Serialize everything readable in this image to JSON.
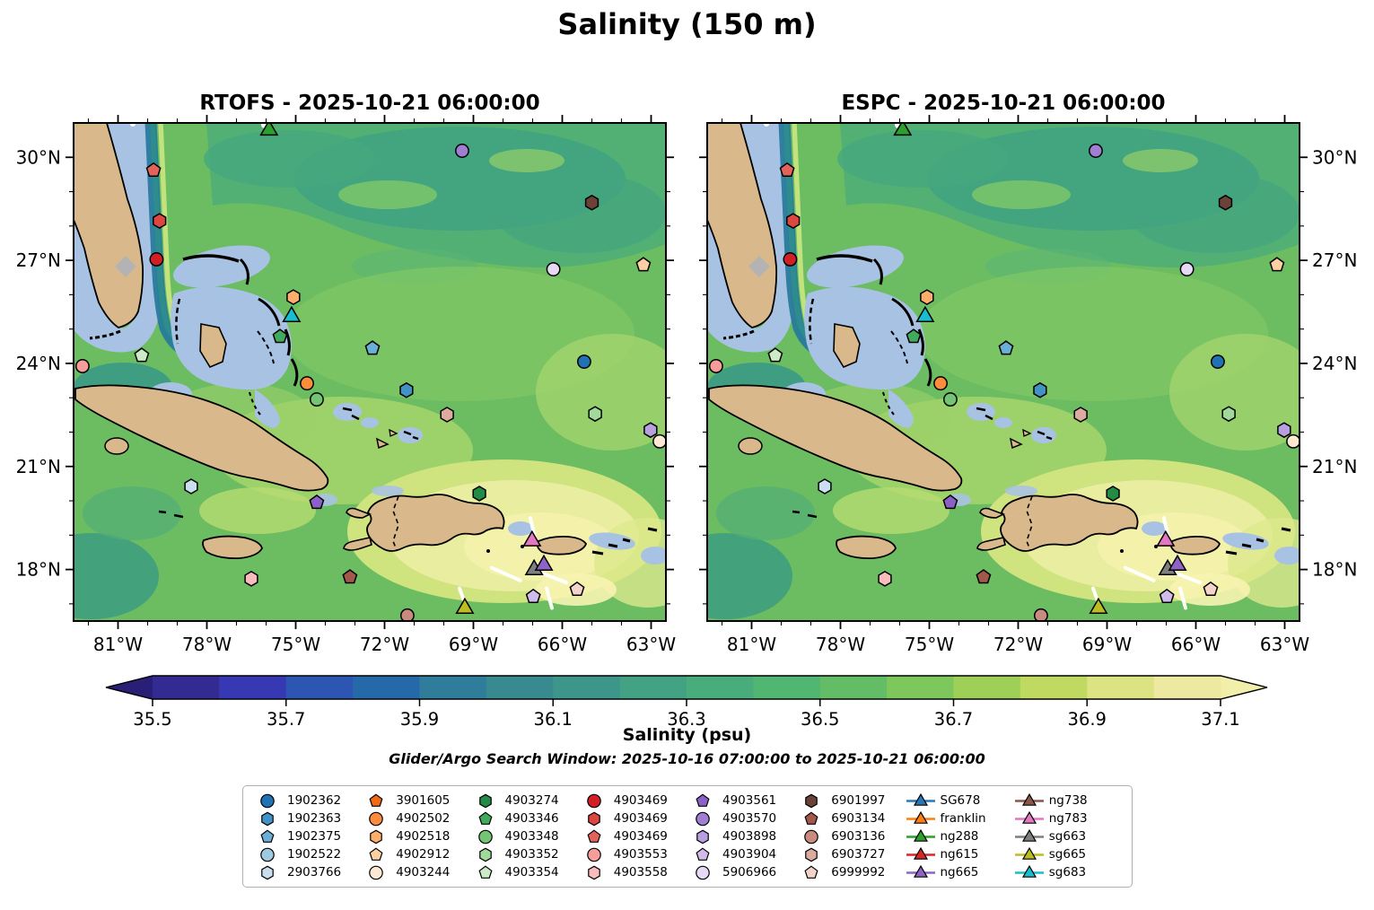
{
  "title": "Salinity (150 m)",
  "chart_data": {
    "type": "scatter",
    "title": "Salinity (150 m)",
    "subplots": [
      {
        "model": "RTOFS",
        "title": "RTOFS - 2025-10-21 06:00:00"
      },
      {
        "model": "ESPC",
        "title": "ESPC - 2025-10-21 06:00:00"
      }
    ],
    "lon_range": [
      -82.5,
      -62.5
    ],
    "lat_range": [
      16.5,
      31.0
    ],
    "x_ticks": {
      "labels": [
        "81°W",
        "78°W",
        "75°W",
        "72°W",
        "69°W",
        "66°W",
        "63°W"
      ],
      "lons": [
        -81,
        -78,
        -75,
        -72,
        -69,
        -66,
        -63
      ],
      "minor_step_deg": 1
    },
    "y_ticks": {
      "labels": [
        "30°N",
        "27°N",
        "24°N",
        "21°N",
        "18°N"
      ],
      "lats": [
        30,
        27,
        24,
        21,
        18
      ],
      "minor_step_deg": 1
    },
    "colorbar": {
      "label": "Salinity (psu)",
      "tick_labels": [
        "35.5",
        "35.7",
        "35.9",
        "36.1",
        "36.3",
        "36.5",
        "36.7",
        "36.9",
        "37.1"
      ],
      "tick_values": [
        35.5,
        35.7,
        35.9,
        36.1,
        36.3,
        36.5,
        36.7,
        36.9,
        37.1
      ],
      "vmin": 35.5,
      "vmax": 37.1,
      "segment_step": 0.1,
      "extend": "both",
      "under_color": "#2a1f77",
      "over_color": "#f2efaa",
      "segment_colors": [
        "#342b92",
        "#3739b4",
        "#2d55b2",
        "#2569a9",
        "#2f7d9b",
        "#388a90",
        "#3d9689",
        "#42a283",
        "#48ad7a",
        "#51b671",
        "#63bd66",
        "#7ec75d",
        "#9ed058",
        "#c0d960",
        "#dce383",
        "#eee9a0"
      ]
    },
    "annotation": "Glider/Argo Search Window: 2025-10-16 07:00:00 to 2025-10-21 06:00:00",
    "legend": {
      "entries": [
        {
          "label": "1902362",
          "kind": "argo",
          "shape": "circle",
          "color": "#2171b5"
        },
        {
          "label": "1902363",
          "kind": "argo",
          "shape": "hexagon",
          "color": "#4292c6"
        },
        {
          "label": "1902375",
          "kind": "argo",
          "shape": "pentagon",
          "color": "#6baed6"
        },
        {
          "label": "1902522",
          "kind": "argo",
          "shape": "circle",
          "color": "#9ecae1"
        },
        {
          "label": "2903766",
          "kind": "argo",
          "shape": "hexagon",
          "color": "#c9dff0"
        },
        {
          "label": "3901605",
          "kind": "argo",
          "shape": "pentagon",
          "color": "#f16913"
        },
        {
          "label": "4902502",
          "kind": "argo",
          "shape": "circle",
          "color": "#fd8d3c"
        },
        {
          "label": "4902518",
          "kind": "argo",
          "shape": "hexagon",
          "color": "#fdae6b"
        },
        {
          "label": "4902912",
          "kind": "argo",
          "shape": "pentagon",
          "color": "#fdd0a2"
        },
        {
          "label": "4903244",
          "kind": "argo",
          "shape": "circle",
          "color": "#fde8d4"
        },
        {
          "label": "4903274",
          "kind": "argo",
          "shape": "hexagon",
          "color": "#238b45"
        },
        {
          "label": "4903346",
          "kind": "argo",
          "shape": "pentagon",
          "color": "#41ab5d"
        },
        {
          "label": "4903348",
          "kind": "argo",
          "shape": "circle",
          "color": "#74c476"
        },
        {
          "label": "4903352",
          "kind": "argo",
          "shape": "hexagon",
          "color": "#a1d99b"
        },
        {
          "label": "4903354",
          "kind": "argo",
          "shape": "pentagon",
          "color": "#cdeac7"
        },
        {
          "label": "4903469",
          "kind": "argo",
          "shape": "circle",
          "color": "#d21f26"
        },
        {
          "label": "4903469",
          "kind": "argo",
          "shape": "hexagon",
          "color": "#dc4840"
        },
        {
          "label": "4903469",
          "kind": "argo",
          "shape": "pentagon",
          "color": "#e2635a"
        },
        {
          "label": "4903553",
          "kind": "argo",
          "shape": "circle",
          "color": "#f59d98"
        },
        {
          "label": "4903558",
          "kind": "argo",
          "shape": "hexagon",
          "color": "#f9bcbe"
        },
        {
          "label": "4903561",
          "kind": "argo",
          "shape": "pentagon",
          "color": "#8c61c7"
        },
        {
          "label": "4903570",
          "kind": "argo",
          "shape": "circle",
          "color": "#a07fd3"
        },
        {
          "label": "4903898",
          "kind": "argo",
          "shape": "hexagon",
          "color": "#b79fe0"
        },
        {
          "label": "4903904",
          "kind": "argo",
          "shape": "pentagon",
          "color": "#cfbcea"
        },
        {
          "label": "5906966",
          "kind": "argo",
          "shape": "circle",
          "color": "#e6d9f6"
        },
        {
          "label": "6901997",
          "kind": "argo",
          "shape": "hexagon",
          "color": "#6b4238"
        },
        {
          "label": "6903134",
          "kind": "argo",
          "shape": "pentagon",
          "color": "#a2594c"
        },
        {
          "label": "6903136",
          "kind": "argo",
          "shape": "circle",
          "color": "#c98b80"
        },
        {
          "label": "6903727",
          "kind": "argo",
          "shape": "hexagon",
          "color": "#dcab9f"
        },
        {
          "label": "6999992",
          "kind": "argo",
          "shape": "pentagon",
          "color": "#f3d3ca"
        },
        {
          "label": "SG678",
          "kind": "glider",
          "shape": "triangle",
          "color": "#2878b8"
        },
        {
          "label": "franklin",
          "kind": "glider",
          "shape": "triangle",
          "color": "#ff7f0e"
        },
        {
          "label": "ng288",
          "kind": "glider",
          "shape": "triangle",
          "color": "#2ca02c"
        },
        {
          "label": "ng615",
          "kind": "glider",
          "shape": "triangle",
          "color": "#d62728"
        },
        {
          "label": "ng665",
          "kind": "glider",
          "shape": "triangle",
          "color": "#8e63c5"
        },
        {
          "label": "ng738",
          "kind": "glider",
          "shape": "triangle",
          "color": "#8c564b"
        },
        {
          "label": "ng783",
          "kind": "glider",
          "shape": "triangle",
          "color": "#e377c2"
        },
        {
          "label": "sg663",
          "kind": "glider",
          "shape": "triangle",
          "color": "#7f7f7f"
        },
        {
          "label": "sg665",
          "kind": "glider",
          "shape": "triangle",
          "color": "#bcbd22"
        },
        {
          "label": "sg683",
          "kind": "glider",
          "shape": "triangle",
          "color": "#17becf"
        }
      ]
    },
    "markers": [
      {
        "id": "ng288",
        "shape": "triangle",
        "color": "#2ca02c",
        "lon": -75.9,
        "lat": 30.79
      },
      {
        "id": "4903570",
        "shape": "circle",
        "color": "#a07fd3",
        "lon": -69.38,
        "lat": 30.19
      },
      {
        "id": "6901997",
        "shape": "hexagon",
        "color": "#6b4238",
        "lon": -65.0,
        "lat": 28.68
      },
      {
        "id": "4903469",
        "shape": "pentagon",
        "color": "#e2635a",
        "lon": -79.8,
        "lat": 29.62
      },
      {
        "id": "4903469",
        "shape": "hexagon",
        "color": "#dc4840",
        "lon": -79.6,
        "lat": 28.15
      },
      {
        "id": "4903469",
        "shape": "circle",
        "color": "#d21f26",
        "lon": -79.7,
        "lat": 27.03
      },
      {
        "id": "5906966",
        "shape": "circle",
        "color": "#e6d9f6",
        "lon": -66.3,
        "lat": 26.74
      },
      {
        "id": "4902912",
        "shape": "pentagon",
        "color": "#fdd0a2",
        "lon": -63.26,
        "lat": 26.87
      },
      {
        "id": "4903553",
        "shape": "circle",
        "color": "#f59d98",
        "lon": -82.2,
        "lat": 23.92
      },
      {
        "id": "4903354",
        "shape": "pentagon",
        "color": "#cdeac7",
        "lon": -80.2,
        "lat": 24.23
      },
      {
        "id": "4902518",
        "shape": "hexagon",
        "color": "#fdae6b",
        "lon": -75.08,
        "lat": 25.93
      },
      {
        "id": "sg683",
        "shape": "triangle",
        "color": "#17becf",
        "lon": -75.14,
        "lat": 25.36
      },
      {
        "id": "4903346",
        "shape": "pentagon",
        "color": "#41ab5d",
        "lon": -75.53,
        "lat": 24.78
      },
      {
        "id": "1902375",
        "shape": "pentagon",
        "color": "#6baed6",
        "lon": -72.41,
        "lat": 24.44
      },
      {
        "id": "4902502",
        "shape": "circle",
        "color": "#fd8d3c",
        "lon": -74.62,
        "lat": 23.42
      },
      {
        "id": "4903348",
        "shape": "circle",
        "color": "#74c476",
        "lon": -74.29,
        "lat": 22.95
      },
      {
        "id": "1902363",
        "shape": "hexagon",
        "color": "#4292c6",
        "lon": -71.26,
        "lat": 23.22
      },
      {
        "id": "6903727",
        "shape": "hexagon",
        "color": "#dcab9f",
        "lon": -69.89,
        "lat": 22.51
      },
      {
        "id": "1902362",
        "shape": "circle",
        "color": "#2171b5",
        "lon": -65.26,
        "lat": 24.05
      },
      {
        "id": "4903352",
        "shape": "hexagon",
        "color": "#a1d99b",
        "lon": -64.89,
        "lat": 22.53
      },
      {
        "id": "4903898",
        "shape": "hexagon",
        "color": "#b79fe0",
        "lon": -63.02,
        "lat": 22.06
      },
      {
        "id": "4903244",
        "shape": "circle",
        "color": "#fde8d4",
        "lon": -62.71,
        "lat": 21.73
      },
      {
        "id": "2903766",
        "shape": "hexagon",
        "color": "#c9dff0",
        "lon": -78.53,
        "lat": 20.42
      },
      {
        "id": "4903561",
        "shape": "pentagon",
        "color": "#8c61c7",
        "lon": -74.29,
        "lat": 19.95
      },
      {
        "id": "4903274",
        "shape": "hexagon",
        "color": "#238b45",
        "lon": -68.8,
        "lat": 20.21
      },
      {
        "id": "4903558",
        "shape": "hexagon",
        "color": "#f9bcbe",
        "lon": -76.5,
        "lat": 17.73
      },
      {
        "id": "6903134",
        "shape": "pentagon",
        "color": "#a2594c",
        "lon": -73.17,
        "lat": 17.78
      },
      {
        "id": "ng783",
        "shape": "triangle",
        "color": "#e377c2",
        "lon": -67.02,
        "lat": 18.83
      },
      {
        "id": "sg663",
        "shape": "triangle",
        "color": "#7f7f7f",
        "lon": -66.95,
        "lat": 17.99
      },
      {
        "id": "ng665",
        "shape": "triangle",
        "color": "#8e63c5",
        "lon": -66.62,
        "lat": 18.12
      },
      {
        "id": "4903904",
        "shape": "pentagon",
        "color": "#cfbcea",
        "lon": -66.98,
        "lat": 17.21
      },
      {
        "id": "6999992",
        "shape": "pentagon",
        "color": "#f3d3ca",
        "lon": -65.5,
        "lat": 17.42
      },
      {
        "id": "sg665",
        "shape": "triangle",
        "color": "#bcbd22",
        "lon": -69.29,
        "lat": 16.87
      },
      {
        "id": "6903136",
        "shape": "circle",
        "color": "#c98b80",
        "lon": -71.23,
        "lat": 16.66
      }
    ],
    "glider_tracks": [
      {
        "points": [
          [
            -67.08,
            19.5
          ],
          [
            -66.93,
            18.95
          ]
        ]
      },
      {
        "points": [
          [
            -68.38,
            18.05
          ],
          [
            -67.42,
            17.68
          ]
        ]
      },
      {
        "points": [
          [
            -66.77,
            17.92
          ],
          [
            -65.86,
            17.62
          ]
        ]
      },
      {
        "points": [
          [
            -66.53,
            17.45
          ],
          [
            -66.35,
            16.88
          ]
        ]
      },
      {
        "points": [
          [
            -69.47,
            17.45
          ],
          [
            -69.23,
            16.88
          ]
        ]
      }
    ],
    "map_colors": {
      "land": "#d9b98c",
      "coastline": "#000000",
      "shallow_bank": "#a8c2e3",
      "ocean_base": "#6cbc62",
      "deep_teal": "#3da183",
      "pale_yellow": "#f4f1ab",
      "lake": "#b3b3b3",
      "track": "#ffffff"
    }
  }
}
